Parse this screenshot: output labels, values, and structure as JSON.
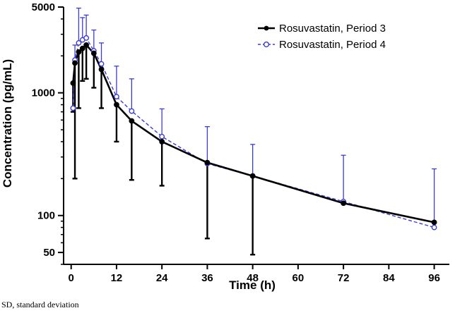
{
  "chart_data": {
    "type": "line",
    "title": "",
    "xlabel": "Time (h)",
    "ylabel": "Concentration (pg/mL)",
    "yscale": "log",
    "xlim": [
      -2,
      100
    ],
    "ylim": [
      40,
      5000
    ],
    "xticks": [
      0,
      12,
      24,
      36,
      48,
      60,
      72,
      84,
      96
    ],
    "yticks": [
      50,
      100,
      1000,
      5000
    ],
    "ytick_labels": [
      "50",
      "100",
      "1000",
      "5000"
    ],
    "legend_position": "top-right",
    "series": [
      {
        "name": "Rosuvastatin, Period 3",
        "color": "#000000",
        "marker": "filled-circle",
        "line": "solid",
        "error_direction": "down",
        "points": [
          {
            "x": 0.5,
            "y": 1200,
            "err": 500
          },
          {
            "x": 1,
            "y": 1750,
            "err": 1550
          },
          {
            "x": 2,
            "y": 2150,
            "err": 1400
          },
          {
            "x": 3,
            "y": 2300,
            "err": 1050
          },
          {
            "x": 4,
            "y": 2450,
            "err": 1150
          },
          {
            "x": 6,
            "y": 2100,
            "err": 1000
          },
          {
            "x": 8,
            "y": 1550,
            "err": 800
          },
          {
            "x": 12,
            "y": 800,
            "err": 400
          },
          {
            "x": 16,
            "y": 590,
            "err": 395
          },
          {
            "x": 24,
            "y": 400,
            "err": 225
          },
          {
            "x": 36,
            "y": 270,
            "err": 205
          },
          {
            "x": 48,
            "y": 210,
            "err": 162
          },
          {
            "x": 72,
            "y": 126,
            "err": 0
          },
          {
            "x": 96,
            "y": 88,
            "err": 0
          }
        ]
      },
      {
        "name": "Rosuvastatin, Period 4",
        "color": "#3b3bd6",
        "marker": "open-circle",
        "line": "dashed",
        "error_direction": "up",
        "points": [
          {
            "x": 0.5,
            "y": 750,
            "err": 0
          },
          {
            "x": 1,
            "y": 1850,
            "err": 600
          },
          {
            "x": 2,
            "y": 2550,
            "err": 2350
          },
          {
            "x": 3,
            "y": 2700,
            "err": 1400
          },
          {
            "x": 4,
            "y": 2800,
            "err": 1500
          },
          {
            "x": 6,
            "y": 2200,
            "err": 1050
          },
          {
            "x": 8,
            "y": 1720,
            "err": 830
          },
          {
            "x": 12,
            "y": 930,
            "err": 720
          },
          {
            "x": 16,
            "y": 710,
            "err": 590
          },
          {
            "x": 24,
            "y": 440,
            "err": 300
          },
          {
            "x": 36,
            "y": 265,
            "err": 265
          },
          {
            "x": 48,
            "y": 210,
            "err": 170
          },
          {
            "x": 72,
            "y": 130,
            "err": 180
          },
          {
            "x": 96,
            "y": 80,
            "err": 160
          }
        ]
      }
    ]
  },
  "footnote": "SD, standard deviation"
}
